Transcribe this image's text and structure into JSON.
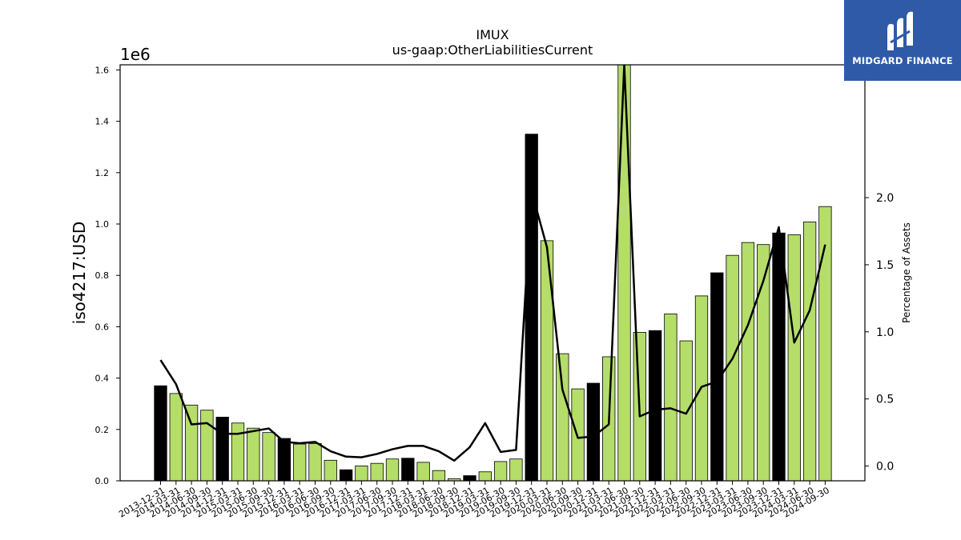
{
  "title": "IMUX",
  "subtitle": "us-gaap:OtherLiabilitiesCurrent",
  "logo": {
    "text": "MIDGARD FINANCE",
    "color": "#2f5aa8"
  },
  "colors": {
    "bar_normal": "#b5dd6a",
    "bar_highlight": "#000000",
    "line": "#000000"
  },
  "chart_data": {
    "type": "bar",
    "title": "IMUX",
    "subtitle": "us-gaap:OtherLiabilitiesCurrent",
    "ylabel": "iso4217:USD",
    "ylabel2": "Percentage of Assets",
    "y_multiplier_label": "1e6",
    "ylim": [
      0,
      1.62
    ],
    "y_ticks": [
      0.0,
      0.2,
      0.4,
      0.6,
      0.8,
      1.0,
      1.2,
      1.4,
      1.6
    ],
    "y2lim": [
      -0.11,
      2.99
    ],
    "y2_ticks": [
      0.0,
      0.5,
      1.0,
      1.5,
      2.0
    ],
    "categories": [
      "2013-12-31",
      "2014-03-31",
      "2014-06-30",
      "2014-09-30",
      "2014-12-31",
      "2015-03-31",
      "2015-06-30",
      "2015-09-30",
      "2015-12-31",
      "2016-03-31",
      "2016-06-30",
      "2016-09-30",
      "2016-12-31",
      "2017-03-31",
      "2017-06-30",
      "2017-09-30",
      "2017-12-31",
      "2018-03-31",
      "2018-06-30",
      "2018-09-30",
      "2018-12-31",
      "2019-03-31",
      "2019-06-30",
      "2019-09-30",
      "2019-12-31",
      "2020-03-31",
      "2020-06-30",
      "2020-09-30",
      "2020-12-31",
      "2021-03-31",
      "2021-06-30",
      "2021-09-30",
      "2021-12-31",
      "2022-03-31",
      "2022-06-30",
      "2022-09-30",
      "2022-12-31",
      "2023-03-31",
      "2023-06-30",
      "2023-09-30",
      "2023-12-31",
      "2024-03-31",
      "2024-06-30",
      "2024-09-30"
    ],
    "series": [
      {
        "type": "bar",
        "values": [
          0.37,
          0.34,
          0.295,
          0.275,
          0.248,
          0.225,
          0.205,
          0.188,
          0.165,
          0.143,
          0.145,
          0.08,
          0.043,
          0.058,
          0.068,
          0.085,
          0.088,
          0.072,
          0.04,
          0.008,
          0.02,
          0.035,
          0.075,
          0.085,
          1.35,
          0.935,
          0.495,
          0.358,
          0.38,
          0.483,
          1.62,
          0.578,
          0.585,
          0.65,
          0.545,
          0.72,
          0.81,
          0.878,
          0.928,
          0.92,
          0.965,
          0.958,
          1.008,
          1.068
        ]
      },
      {
        "type": "line",
        "axis": "right",
        "values": [
          0.79,
          0.61,
          0.31,
          0.32,
          0.24,
          0.24,
          0.26,
          0.28,
          0.18,
          0.17,
          0.18,
          0.11,
          0.07,
          0.065,
          0.09,
          0.125,
          0.15,
          0.15,
          0.11,
          0.04,
          0.14,
          0.32,
          0.105,
          0.12,
          2.05,
          1.63,
          0.57,
          0.21,
          0.22,
          0.31,
          2.99,
          0.37,
          0.42,
          0.43,
          0.39,
          0.59,
          0.63,
          0.8,
          1.05,
          1.38,
          1.78,
          0.92,
          1.16,
          1.65
        ]
      }
    ],
    "highlight_categories": [
      "2013-12-31",
      "2014-12-31",
      "2015-12-31",
      "2016-12-31",
      "2017-12-31",
      "2018-12-31",
      "2019-12-31",
      "2020-12-31",
      "2021-12-31",
      "2022-12-31",
      "2023-12-31"
    ]
  }
}
